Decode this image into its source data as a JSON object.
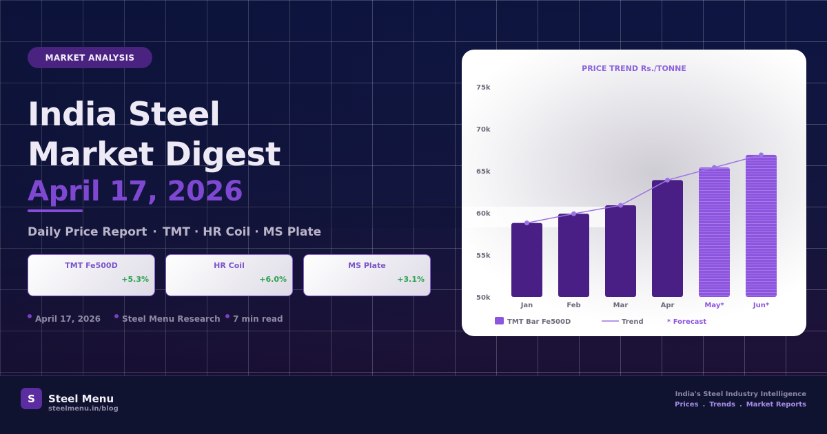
{
  "tag": "MARKET ANALYSIS",
  "title_lines": [
    "India Steel",
    "Market Digest"
  ],
  "date_heading": "April 17, 2026",
  "subtitle": {
    "report": "Daily Price Report",
    "products": "TMT · HR Coil · MS Plate"
  },
  "stats": [
    {
      "label": "TMT Fe500D",
      "change": "+5.3%"
    },
    {
      "label": "HR Coil",
      "change": "+6.0%"
    },
    {
      "label": "MS Plate",
      "change": "+3.1%"
    }
  ],
  "meta": {
    "date": "April 17, 2026",
    "author": "Steel Menu Research",
    "read_time": "7 min read"
  },
  "chart_data": {
    "type": "bar",
    "title": "PRICE TREND  Rs./TONNE",
    "categories": [
      "Jan",
      "Feb",
      "Mar",
      "Apr",
      "May*",
      "Jun*"
    ],
    "values": [
      58800,
      59900,
      60900,
      63900,
      65400,
      66900
    ],
    "forecast": [
      false,
      false,
      false,
      false,
      true,
      true
    ],
    "trend": [
      58800,
      59900,
      60900,
      63900,
      65400,
      66900
    ],
    "ylim": [
      50000,
      75000
    ],
    "yticks": [
      {
        "value": 75000,
        "label": "75k"
      },
      {
        "value": 70000,
        "label": "70k"
      },
      {
        "value": 65000,
        "label": "65k"
      },
      {
        "value": 60000,
        "label": "60k"
      },
      {
        "value": 55000,
        "label": "55k"
      },
      {
        "value": 50000,
        "label": "50k"
      }
    ],
    "legend": {
      "bar": "TMT Bar Fe500D",
      "trend": "Trend",
      "forecast": "* Forecast"
    },
    "colors": {
      "bar": "#4a1f85",
      "forecast_bar": "#8d55de",
      "trend": "#9d74e3",
      "axis_text": "#6e6a7c",
      "forecast_text": "#8d55de"
    }
  },
  "footer": {
    "logo_letter": "S",
    "brand": "Steel Menu",
    "url": "steelmenu.in/blog",
    "tagline": "India's Steel Industry Intelligence",
    "links": [
      "Prices",
      "Trends",
      "Market Reports"
    ]
  }
}
